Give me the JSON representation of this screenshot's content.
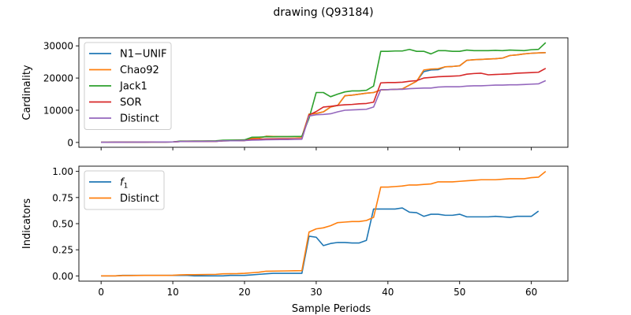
{
  "figure": {
    "title": "drawing (Q93184)"
  },
  "chart_data": [
    {
      "type": "line",
      "title": "drawing (Q93184)",
      "xlabel": "",
      "ylabel": "Cardinality",
      "xlim": [
        -3.1,
        65.1
      ],
      "ylim": [
        -1500,
        32500
      ],
      "xticks": [
        0,
        10,
        20,
        30,
        40,
        50,
        60
      ],
      "yticks": [
        0,
        10000,
        20000,
        30000
      ],
      "x_tick_labels_visible": false,
      "grid": false,
      "legend": "top-left",
      "series": [
        {
          "name": "N1−UNIF",
          "color": "#1f77b4",
          "values": [
            50,
            60,
            70,
            80,
            90,
            100,
            110,
            120,
            130,
            140,
            150,
            300,
            310,
            320,
            330,
            340,
            350,
            500,
            520,
            540,
            600,
            1300,
            1350,
            1900,
            1850,
            1800,
            1800,
            1750,
            1700,
            8800,
            9000,
            9500,
            11000,
            11500,
            14500,
            14700,
            15000,
            15300,
            15500,
            16300,
            16400,
            16500,
            16600,
            17800,
            19000,
            22000,
            22500,
            22600,
            23500,
            23600,
            23800,
            25500,
            25700,
            25800,
            25900,
            26000,
            26200,
            27000,
            27200,
            27500,
            27700,
            27800,
            27900
          ]
        },
        {
          "name": "Chao92",
          "color": "#ff7f0e",
          "values": [
            50,
            60,
            70,
            80,
            90,
            100,
            110,
            120,
            130,
            140,
            150,
            300,
            310,
            320,
            330,
            340,
            350,
            500,
            520,
            540,
            600,
            1300,
            1350,
            1900,
            1850,
            1800,
            1800,
            1750,
            1700,
            8800,
            9000,
            9500,
            11000,
            11500,
            14500,
            14700,
            15000,
            15300,
            15500,
            16300,
            16400,
            16500,
            16600,
            17800,
            19000,
            22500,
            22800,
            22900,
            23500,
            23600,
            23800,
            25500,
            25700,
            25800,
            25900,
            26000,
            26200,
            27000,
            27200,
            27500,
            27700,
            27800,
            27900
          ]
        },
        {
          "name": "Jack1",
          "color": "#2ca02c",
          "values": [
            50,
            60,
            70,
            80,
            90,
            100,
            110,
            120,
            130,
            140,
            150,
            400,
            420,
            440,
            460,
            480,
            500,
            700,
            720,
            740,
            800,
            1600,
            1650,
            1750,
            1750,
            1800,
            1800,
            1850,
            1900,
            7500,
            15500,
            15500,
            14200,
            15000,
            15700,
            16000,
            16000,
            16200,
            17500,
            28300,
            28300,
            28400,
            28400,
            28900,
            28300,
            28300,
            27500,
            28500,
            28500,
            28300,
            28300,
            28700,
            28500,
            28500,
            28500,
            28600,
            28500,
            28700,
            28600,
            28500,
            28800,
            28900,
            31000
          ]
        },
        {
          "name": "SOR",
          "color": "#d62728",
          "values": [
            50,
            60,
            70,
            80,
            90,
            100,
            110,
            120,
            130,
            140,
            150,
            300,
            310,
            320,
            330,
            340,
            350,
            500,
            520,
            540,
            600,
            900,
            950,
            1100,
            1120,
            1150,
            1150,
            1150,
            1150,
            8500,
            9600,
            11000,
            11200,
            11500,
            11700,
            11800,
            12000,
            12100,
            12500,
            18500,
            18600,
            18600,
            18700,
            19000,
            19200,
            20000,
            20200,
            20400,
            20500,
            20600,
            20700,
            21200,
            21400,
            21500,
            21000,
            21100,
            21200,
            21300,
            21500,
            21600,
            21700,
            21800,
            23000
          ]
        },
        {
          "name": "Distinct",
          "color": "#9467bd",
          "values": [
            50,
            60,
            70,
            80,
            90,
            100,
            110,
            120,
            130,
            140,
            150,
            300,
            310,
            320,
            330,
            340,
            350,
            500,
            520,
            540,
            600,
            700,
            750,
            850,
            870,
            900,
            900,
            950,
            1000,
            8200,
            8600,
            8700,
            8900,
            9500,
            10000,
            10100,
            10200,
            10300,
            11000,
            16400,
            16400,
            16500,
            16500,
            16700,
            16800,
            16900,
            16900,
            17200,
            17300,
            17300,
            17300,
            17500,
            17600,
            17600,
            17700,
            17800,
            17800,
            17900,
            17900,
            18000,
            18100,
            18200,
            19200
          ]
        }
      ]
    },
    {
      "type": "line",
      "title": "",
      "xlabel": "Sample Periods",
      "ylabel": "Indicators",
      "xlim": [
        -3.1,
        65.1
      ],
      "ylim": [
        -0.05,
        1.05
      ],
      "xticks": [
        0,
        10,
        20,
        30,
        40,
        50,
        60
      ],
      "yticks": [
        0.0,
        0.25,
        0.5,
        0.75,
        1.0
      ],
      "grid": false,
      "legend": "top-left",
      "series": [
        {
          "name": "f1",
          "color": "#1f77b4",
          "values": [
            0.0,
            0.0,
            0.0,
            0.005,
            0.005,
            0.005,
            0.005,
            0.005,
            0.005,
            0.005,
            0.005,
            0.005,
            0.005,
            0.0,
            0.0,
            0.0,
            0.0,
            0.0,
            0.005,
            0.005,
            0.005,
            0.01,
            0.015,
            0.02,
            0.025,
            0.025,
            0.025,
            0.025,
            0.025,
            0.38,
            0.37,
            0.29,
            0.31,
            0.32,
            0.32,
            0.315,
            0.315,
            0.34,
            0.64,
            0.64,
            0.64,
            0.64,
            0.65,
            0.61,
            0.605,
            0.57,
            0.59,
            0.59,
            0.58,
            0.58,
            0.59,
            0.565,
            0.565,
            0.565,
            0.565,
            0.57,
            0.565,
            0.56,
            0.57,
            0.57,
            0.57,
            0.62
          ]
        },
        {
          "name": "Distinct",
          "color": "#ff7f0e",
          "values": [
            0.0,
            0.0,
            0.0,
            0.003,
            0.003,
            0.004,
            0.005,
            0.005,
            0.005,
            0.005,
            0.006,
            0.01,
            0.012,
            0.012,
            0.013,
            0.014,
            0.015,
            0.02,
            0.021,
            0.022,
            0.025,
            0.03,
            0.035,
            0.045,
            0.046,
            0.047,
            0.048,
            0.049,
            0.05,
            0.42,
            0.45,
            0.46,
            0.48,
            0.51,
            0.515,
            0.52,
            0.52,
            0.53,
            0.56,
            0.85,
            0.85,
            0.855,
            0.86,
            0.87,
            0.87,
            0.875,
            0.88,
            0.9,
            0.9,
            0.9,
            0.905,
            0.91,
            0.915,
            0.92,
            0.92,
            0.92,
            0.925,
            0.93,
            0.93,
            0.93,
            0.94,
            0.945,
            1.0
          ]
        }
      ]
    }
  ]
}
